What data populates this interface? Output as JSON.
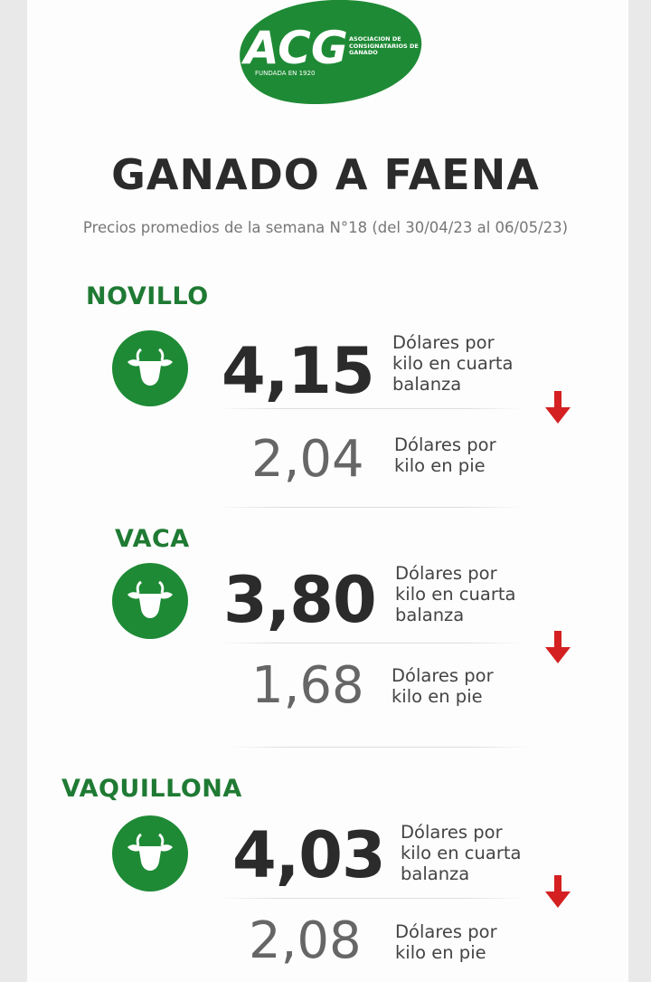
{
  "logo": {
    "acronym": "ACG",
    "name": "ASOCIACIÓN DE CONSIGNATARIOS DE GANADO",
    "founded": "FUNDADA EN 1920"
  },
  "title": "GANADO A FAENA",
  "subtitle": "Precios promedios de la semana N°18 (del 30/04/23 al 06/05/23)",
  "sections": [
    {
      "name": "NOVILLO",
      "carcass_price": "4,15",
      "carcass_unit": "Dólares por kilo en cuarta balanza",
      "live_price": "2,04",
      "live_unit": "Dólares por kilo en pie"
    },
    {
      "name": "VACA",
      "carcass_price": "3,80",
      "carcass_unit": "Dólares por kilo en cuarta balanza",
      "live_price": "1,68",
      "live_unit": "Dólares por kilo en pie"
    },
    {
      "name": "VAQUILLONA",
      "carcass_price": "4,03",
      "carcass_unit": "Dólares por kilo en cuarta balanza",
      "live_price": "2,08",
      "live_unit": "Dólares por kilo en pie"
    }
  ]
}
